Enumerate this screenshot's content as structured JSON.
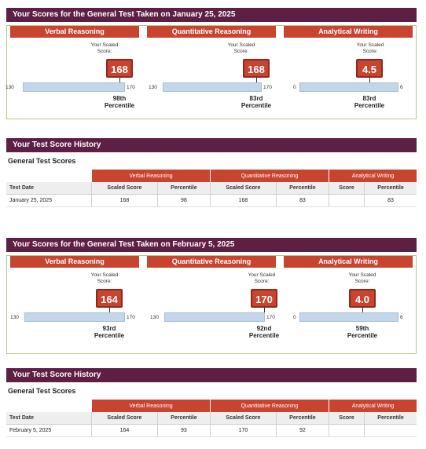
{
  "report1": {
    "title": "Your Scores for the General Test Taken on January 25, 2025",
    "scaled_label": "Your Scaled Score:",
    "sections": [
      {
        "name": "Verbal Reasoning",
        "score": "168",
        "min": "130",
        "max": "170",
        "pct_line1": "98th",
        "pct_line2": "Percentile",
        "level": 0.95
      },
      {
        "name": "Quantitative Reasoning",
        "score": "168",
        "min": "130",
        "max": "170",
        "pct_line1": "83rd",
        "pct_line2": "Percentile",
        "level": 0.95
      },
      {
        "name": "Analytical Writing",
        "score": "4.5",
        "min": "0",
        "max": "6",
        "pct_line1": "83rd",
        "pct_line2": "Percentile",
        "level": 0.75
      }
    ]
  },
  "history1": {
    "title": "Your Test Score History",
    "subtitle": "General Test Scores",
    "groups": [
      "Verbal Reasoning",
      "Quantitative Reasoning",
      "Analytical Writing"
    ],
    "headers": [
      "Test Date",
      "Scaled Score",
      "Percentile",
      "Scaled Score",
      "Percentile",
      "Score",
      "Percentile"
    ],
    "row": [
      "January 25, 2025",
      "168",
      "98",
      "168",
      "83",
      "",
      "83"
    ]
  },
  "report2": {
    "title": "Your Scores for the General Test Taken on February 5, 2025",
    "scaled_label": "Your Scaled Score:",
    "sections": [
      {
        "name": "Verbal Reasoning",
        "score": "164",
        "min": "130",
        "max": "170",
        "pct_line1": "93rd",
        "pct_line2": "Percentile",
        "level": 0.85
      },
      {
        "name": "Quantitative Reasoning",
        "score": "170",
        "min": "130",
        "max": "170",
        "pct_line1": "92nd",
        "pct_line2": "Percentile",
        "level": 1.0
      },
      {
        "name": "Analytical Writing",
        "score": "4.0",
        "min": "0",
        "max": "6",
        "pct_line1": "59th",
        "pct_line2": "Percentile",
        "level": 0.667
      }
    ]
  },
  "history2": {
    "title": "Your Test Score History",
    "subtitle": "General Test Scores",
    "groups": [
      "Verbal Reasoning",
      "Quantitative Reasoning",
      "Analytical Writing"
    ],
    "headers": [
      "Test Date",
      "Scaled Score",
      "Percentile",
      "Scaled Score",
      "Percentile",
      "Score",
      "Percentile"
    ],
    "row": [
      "February 5, 2025",
      "164",
      "93",
      "170",
      "92",
      "",
      ""
    ]
  }
}
